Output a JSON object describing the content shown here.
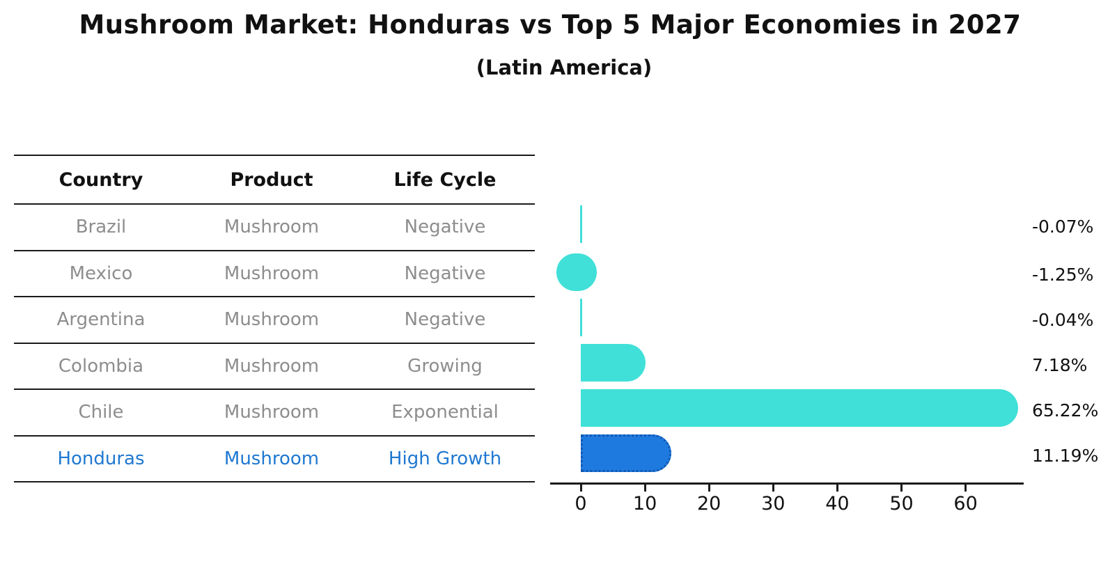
{
  "title": "Mushroom Market: Honduras vs Top 5 Major Economies in 2027",
  "subtitle": "(Latin America)",
  "colors": {
    "bar_cyan": "#40e0d8",
    "bar_blue": "#1f7ae0",
    "bar_blue_edge": "#1258b0",
    "highlight_text": "#1f78d1",
    "row_text": "#8d8d8d",
    "header_text": "#111111"
  },
  "table": {
    "headers": [
      "Country",
      "Product",
      "Life Cycle"
    ],
    "rows": [
      {
        "country": "Brazil",
        "product": "Mushroom",
        "life_cycle": "Negative",
        "highlight": false
      },
      {
        "country": "Mexico",
        "product": "Mushroom",
        "life_cycle": "Negative",
        "highlight": false
      },
      {
        "country": "Argentina",
        "product": "Mushroom",
        "life_cycle": "Negative",
        "highlight": false
      },
      {
        "country": "Colombia",
        "product": "Mushroom",
        "life_cycle": "Growing",
        "highlight": false
      },
      {
        "country": "Chile",
        "product": "Mushroom",
        "life_cycle": "Exponential",
        "highlight": false
      },
      {
        "country": "Honduras",
        "product": "Mushroom",
        "life_cycle": "High Growth",
        "highlight": true
      }
    ]
  },
  "chart_data": {
    "type": "bar",
    "orientation": "horizontal",
    "title": "Mushroom Market: Honduras vs Top 5 Major Economies in 2027 (Latin America)",
    "categories": [
      "Brazil",
      "Mexico",
      "Argentina",
      "Colombia",
      "Chile",
      "Honduras"
    ],
    "values": [
      -0.07,
      -1.25,
      -0.04,
      7.18,
      65.22,
      11.19
    ],
    "value_labels": [
      "-0.07%",
      "-1.25%",
      "-0.04%",
      "7.18%",
      "65.22%",
      "11.19%"
    ],
    "x_ticks": [
      0,
      10,
      20,
      30,
      40,
      50,
      60
    ],
    "xlim": [
      -4.8,
      69
    ],
    "xlabel": "",
    "ylabel": "",
    "grid": false,
    "legend": false,
    "highlight_category": "Honduras",
    "unit": "percent"
  }
}
